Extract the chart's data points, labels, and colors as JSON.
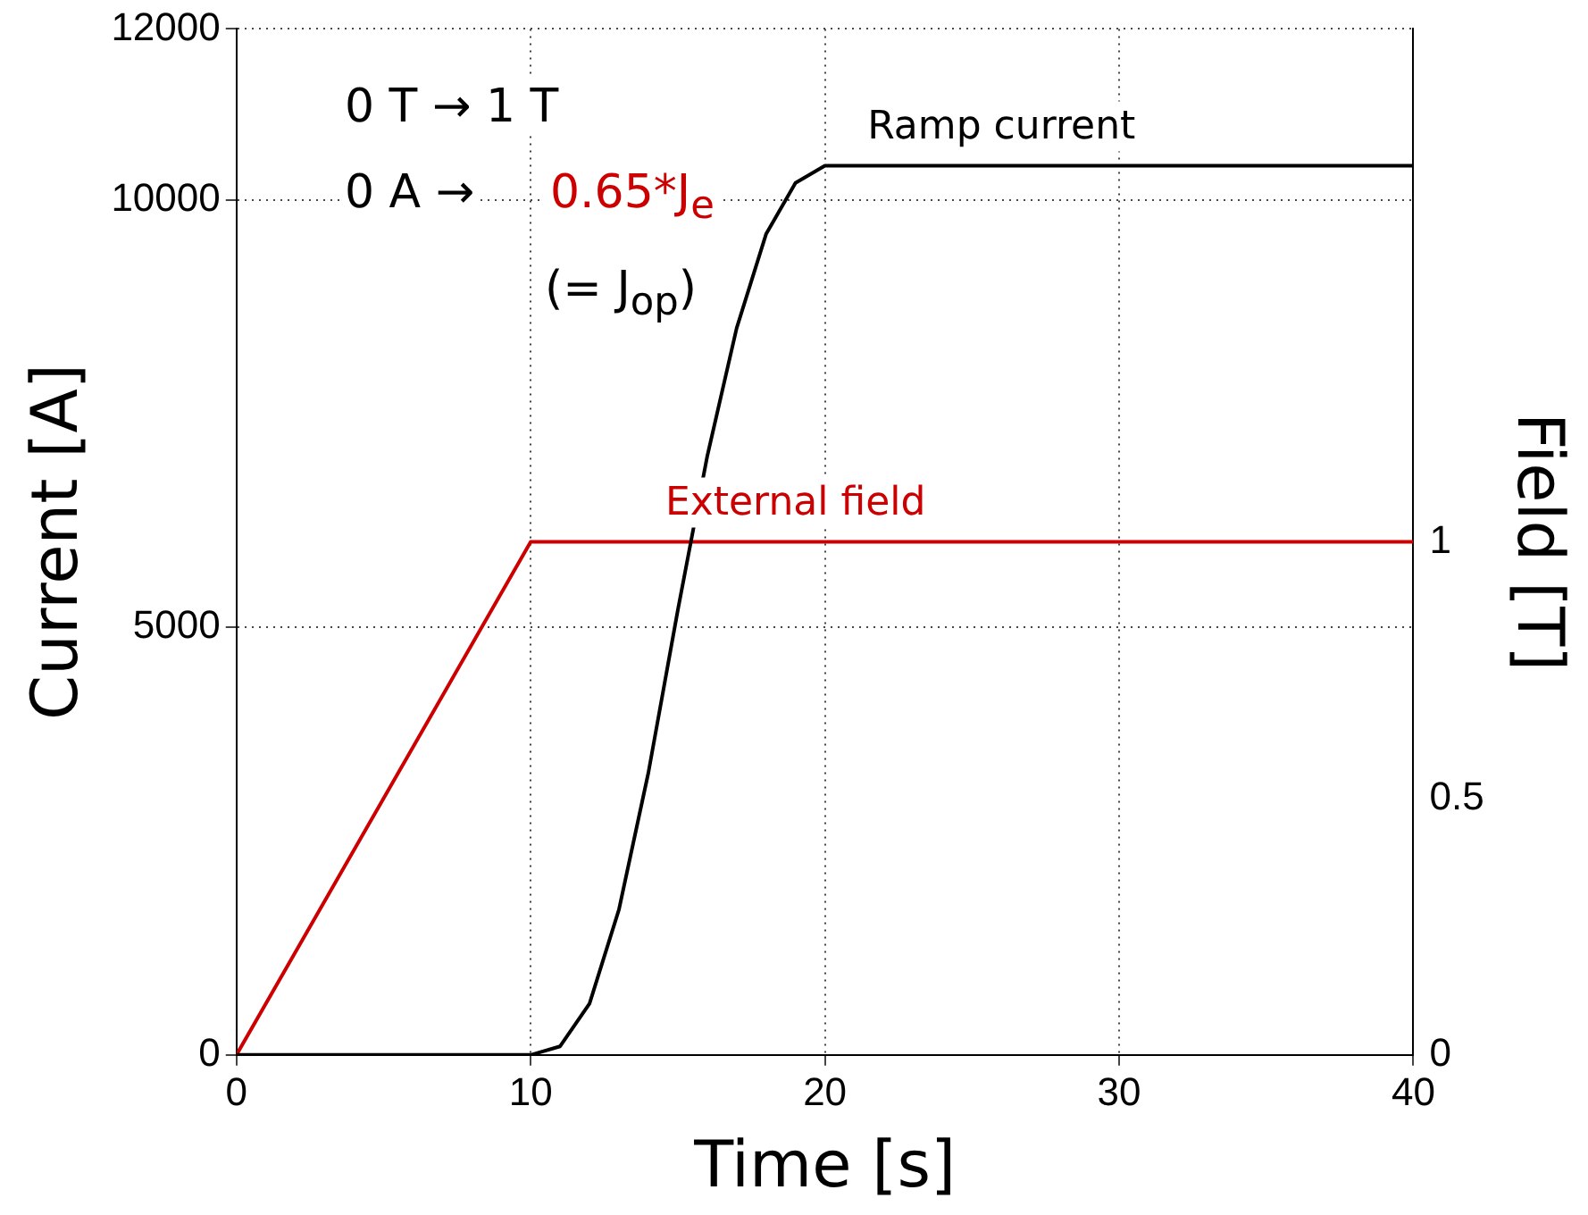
{
  "chart_data": {
    "type": "line",
    "xlabel": "Time [s]",
    "ylabel": "Current [A]",
    "y2label": "Field [T]",
    "xlim": [
      0,
      40
    ],
    "xticks": [
      0,
      10,
      20,
      30,
      40
    ],
    "ylim": [
      0,
      12000
    ],
    "yticks": [
      0,
      5000,
      10000,
      12000
    ],
    "y2lim": [
      0,
      2
    ],
    "y2ticks": [
      0,
      0.5,
      1
    ],
    "grid": true,
    "legend": false,
    "marker": "none",
    "line_style": "solid",
    "series": [
      {
        "name": "Ramp current",
        "color": "#000000",
        "x": [
          0,
          10,
          11,
          12,
          13,
          14,
          15,
          16,
          17,
          18,
          19,
          20,
          40
        ],
        "values": [
          0,
          0,
          100,
          600,
          1700,
          3300,
          5200,
          7000,
          8500,
          9600,
          10200,
          10400,
          10400
        ]
      },
      {
        "name": "External field",
        "color": "#cc0000",
        "axis": "y2",
        "x": [
          0,
          10,
          40
        ],
        "values": [
          0,
          1,
          1
        ]
      }
    ],
    "annotations": [
      "0 T → 1 T",
      "0 A →",
      "0.65*J$_{e}$",
      "(= J$_{op}$)"
    ]
  }
}
